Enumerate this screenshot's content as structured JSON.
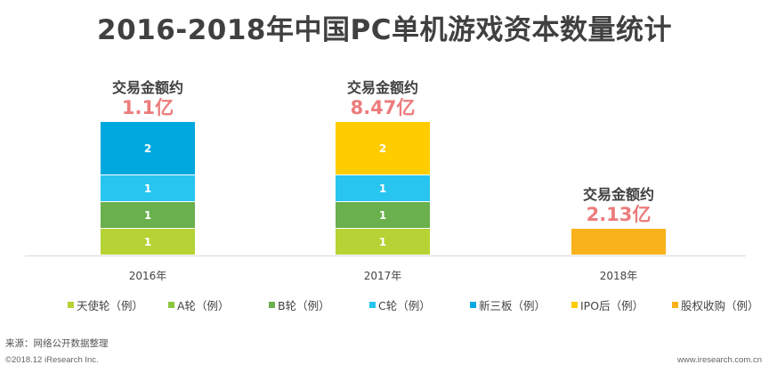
{
  "chart_data": {
    "type": "bar",
    "stacked": true,
    "title": "2016-2018年中国PC单机游戏资本数量统计",
    "categories": [
      "2016年",
      "2017年",
      "2018年"
    ],
    "series": [
      {
        "name": "天使轮（例）",
        "color": "#b5d334",
        "values": [
          1,
          1,
          0
        ]
      },
      {
        "name": "A轮（例）",
        "color": "#8dc63f",
        "values": [
          0,
          0,
          0
        ]
      },
      {
        "name": "B轮（例）",
        "color": "#6ab04c",
        "values": [
          1,
          1,
          0
        ]
      },
      {
        "name": "C轮（例）",
        "color": "#27c5f0",
        "values": [
          1,
          1,
          0
        ]
      },
      {
        "name": "新三板（例）",
        "color": "#00a8e0",
        "values": [
          2,
          0,
          0
        ]
      },
      {
        "name": "IPO后（例）",
        "color": "#ffcc00",
        "values": [
          0,
          2,
          0
        ]
      },
      {
        "name": "股权收购（例）",
        "color": "#f9b21b",
        "values": [
          0,
          0,
          1
        ]
      }
    ],
    "annotations": [
      {
        "category": "2016年",
        "label": "交易金额约",
        "amount": "1.1亿"
      },
      {
        "category": "2017年",
        "label": "交易金额约",
        "amount": "8.47亿"
      },
      {
        "category": "2018年",
        "label": "交易金额约",
        "amount": "2.13亿"
      }
    ],
    "ylim": [
      0,
      5
    ],
    "grid": false,
    "legend_position": "bottom"
  },
  "footer": {
    "source": "来源：网络公开数据整理",
    "copyright": "©2018.12 iResearch Inc.",
    "website": "www.iresearch.com.cn"
  },
  "colors": {
    "title": "#404040",
    "annotation_label": "#404040",
    "annotation_amount": "#ec7c7c",
    "segment_label": "#ffffff",
    "axis_line": "#d9d9d9"
  }
}
